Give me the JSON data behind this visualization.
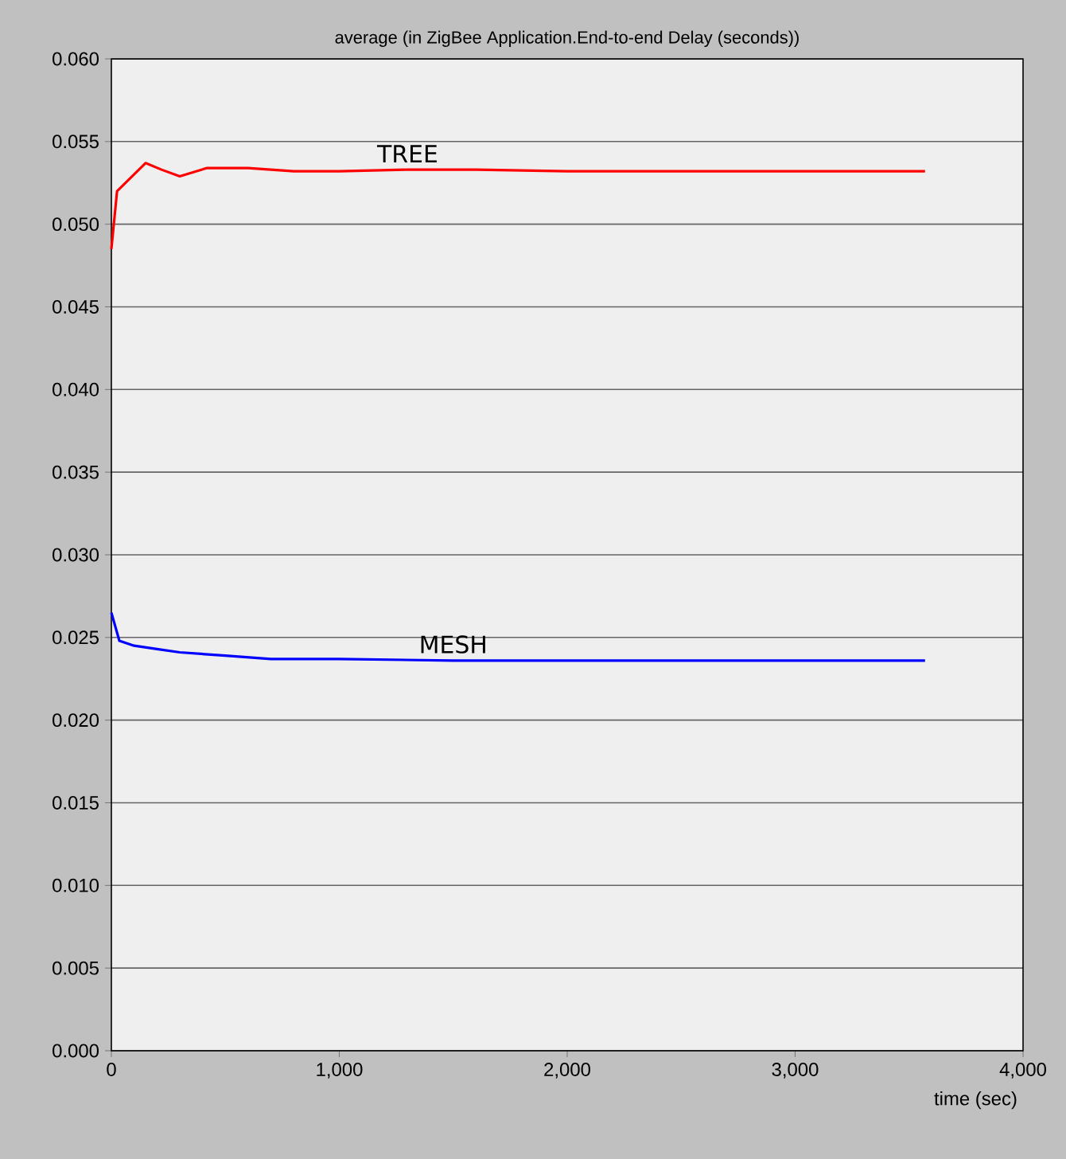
{
  "chart_data": {
    "type": "line",
    "title": "average (in ZigBee Application.End-to-end Delay (seconds))",
    "xlabel": "time (sec)",
    "xlim": [
      0,
      4000
    ],
    "xticks": [
      {
        "value": 0,
        "label": "0"
      },
      {
        "value": 1000,
        "label": "1,000"
      },
      {
        "value": 2000,
        "label": "2,000"
      },
      {
        "value": 3000,
        "label": "3,000"
      },
      {
        "value": 4000,
        "label": "4,000"
      }
    ],
    "ylim": [
      0,
      0.06
    ],
    "yticks": [
      {
        "value": 0,
        "label": "0.000"
      },
      {
        "value": 0.005,
        "label": "0.005"
      },
      {
        "value": 0.01,
        "label": "0.010"
      },
      {
        "value": 0.015,
        "label": "0.015"
      },
      {
        "value": 0.02,
        "label": "0.020"
      },
      {
        "value": 0.025,
        "label": "0.025"
      },
      {
        "value": 0.03,
        "label": "0.030"
      },
      {
        "value": 0.035,
        "label": "0.035"
      },
      {
        "value": 0.04,
        "label": "0.040"
      },
      {
        "value": 0.045,
        "label": "0.045"
      },
      {
        "value": 0.05,
        "label": "0.050"
      },
      {
        "value": 0.055,
        "label": "0.055"
      },
      {
        "value": 0.06,
        "label": "0.060"
      }
    ],
    "grid": "y",
    "marker": "none",
    "line_style": "solid",
    "series": [
      {
        "name": "TREE",
        "color": "#ff0000",
        "x": [
          0,
          25,
          150,
          220,
          300,
          420,
          600,
          800,
          1000,
          1300,
          1600,
          2000,
          2400,
          2800,
          3200,
          3570
        ],
        "values": [
          0.0485,
          0.052,
          0.0537,
          0.0533,
          0.0529,
          0.0534,
          0.0534,
          0.0532,
          0.0532,
          0.0533,
          0.0533,
          0.0532,
          0.0532,
          0.0532,
          0.0532,
          0.0532
        ]
      },
      {
        "name": "MESH",
        "color": "#0000ff",
        "x": [
          0,
          35,
          100,
          200,
          300,
          500,
          700,
          1000,
          1500,
          2000,
          2500,
          3000,
          3570
        ],
        "values": [
          0.0265,
          0.0248,
          0.0245,
          0.0243,
          0.0241,
          0.0239,
          0.0237,
          0.0237,
          0.0236,
          0.0236,
          0.0236,
          0.0236,
          0.0236
        ]
      }
    ]
  }
}
